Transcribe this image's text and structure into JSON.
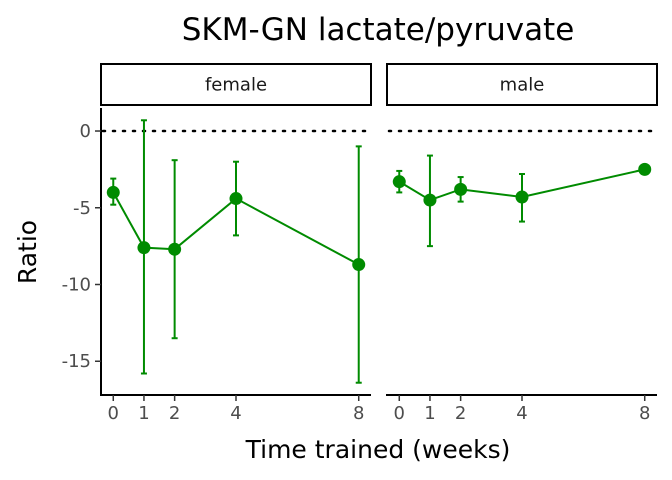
{
  "chart_data": {
    "type": "line",
    "title": "SKM-GN lactate/pyruvate",
    "xlabel": "Time trained (weeks)",
    "ylabel": "Ratio",
    "x_ticks": [
      0,
      1,
      2,
      4,
      8
    ],
    "y_ticks": [
      0,
      -5,
      -10,
      -15
    ],
    "y_tick_labels": [
      "0",
      "-5",
      "-10",
      "-15"
    ],
    "xlim": [
      -0.4,
      8.4
    ],
    "ylim": [
      -17.2,
      1.5
    ],
    "reference_line_y": 0,
    "grid": false,
    "color": "#008B00",
    "panels": [
      {
        "label": "female",
        "points": [
          {
            "x": 0,
            "y": -4.0,
            "ymin": -4.8,
            "ymax": -3.1
          },
          {
            "x": 1,
            "y": -7.6,
            "ymin": -15.8,
            "ymax": 0.7
          },
          {
            "x": 2,
            "y": -7.7,
            "ymin": -13.5,
            "ymax": -1.9
          },
          {
            "x": 4,
            "y": -4.4,
            "ymin": -6.8,
            "ymax": -2.0
          },
          {
            "x": 8,
            "y": -8.7,
            "ymin": -16.4,
            "ymax": -1.0
          }
        ]
      },
      {
        "label": "male",
        "points": [
          {
            "x": 0,
            "y": -3.3,
            "ymin": -4.0,
            "ymax": -2.6
          },
          {
            "x": 1,
            "y": -4.5,
            "ymin": -7.5,
            "ymax": -1.6
          },
          {
            "x": 2,
            "y": -3.8,
            "ymin": -4.6,
            "ymax": -3.0
          },
          {
            "x": 4,
            "y": -4.3,
            "ymin": -5.9,
            "ymax": -2.8
          },
          {
            "x": 8,
            "y": -2.5,
            "ymin": null,
            "ymax": null
          }
        ]
      }
    ]
  }
}
